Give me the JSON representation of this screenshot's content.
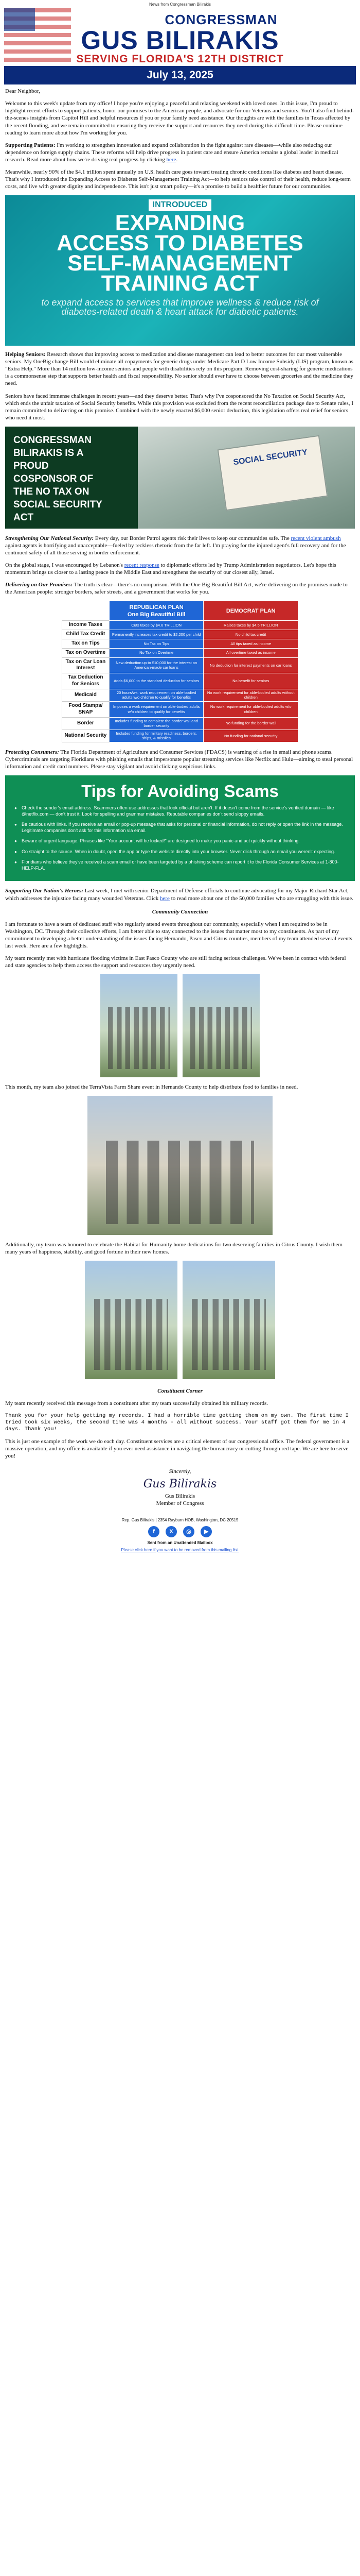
{
  "top_note": "News from Congressman Bilirakis",
  "header": {
    "congressman": "CONGRESSMAN",
    "name": "GUS BILIRAKIS",
    "district": "SERVING FLORIDA'S 12TH DISTRICT",
    "date": "July 13, 2025"
  },
  "greeting": "Dear Neighbor,",
  "intro": "Welcome to this week's update from my office! I hope you're enjoying a peaceful and relaxing weekend with loved ones. In this issue, I'm proud to highlight recent efforts to support patients, honor our promises to the American people, and advocate for our Veterans and seniors. You'll also find behind-the-scenes insights from Capitol Hill and helpful resources if you or your family need assistance. Our thoughts are with the families in Texas affected by the recent flooding, and we remain committed to ensuring they receive the support and resources they need during this difficult time. Please continue reading to learn more about how I'm working for you.",
  "patients": {
    "heading": "Supporting Patients:",
    "text": " I'm working to strengthen innovation and expand collaboration in the fight against rare diseases—while also reducing our dependence on foreign supply chains. These reforms will help drive progress in patient care and ensure America remains a global leader in medical research. Read more about how we're driving real progress by clicking ",
    "link": "here",
    "tail": "."
  },
  "diabetes_intro": "Meanwhile, nearly 90% of the $4.1 trillion spent annually on U.S. health care goes toward treating chronic conditions like diabetes and heart disease. That's why I introduced the Expanding Access to Diabetes Self-Management Training Act—to help seniors take control of their health, reduce long-term costs, and live with greater dignity and independence. This isn't just smart policy—it's a promise to build a healthier future for our communities.",
  "diabetes_banner": {
    "tag": "INTRODUCED",
    "title_lines": [
      "EXPANDING",
      "ACCESS TO DIABETES",
      "SELF-MANAGEMENT",
      "TRAINING ACT"
    ],
    "subtitle": "to expand access to services that improve wellness & reduce risk of diabetes-related death & heart attack for diabetic patients."
  },
  "seniors": {
    "heading": "Helping Seniors:",
    "text1": " Research shows that improving access to medication and disease management can lead to better outcomes for our most vulnerable seniors. My OneBig change Bill would eliminate all copayments for generic drugs under Medicare Part D Low Income Subsidy (LIS) program, known as \"Extra Help.\" More than 14 million low-income seniors and people with disabilities rely on this program. Removing cost-sharing for generic medications is a commonsense step that supports better health and fiscal responsibility. No senior should ever have to choose between groceries and the medicine they need.",
    "text2": "Seniors have faced immense challenges in recent years—and they deserve better. That's why I've cosponsored the No Taxation on Social Security Act, which ends the unfair taxation of Social Security benefits. While this provision was excluded from the recent reconciliation package due to Senate rules, I remain committed to delivering on this promise. Combined with the newly enacted $6,000 senior deduction, this legislation offers real relief for seniors who need it most."
  },
  "ss_banner": {
    "lines": [
      "CONGRESSMAN",
      "BILIRAKIS IS A",
      "PROUD",
      "COSPONSOR OF",
      "THE NO TAX ON",
      "SOCIAL SECURITY",
      "ACT"
    ],
    "card": "SOCIAL SECURITY"
  },
  "social_security": {
    "heading": "Strengthening Our National Security:",
    "text": " Every day, our Border Patrol agents risk their lives to keep our communities safe. The ",
    "link": "recent violent ambush",
    "tail": " against agents is horrifying and unacceptable—fueled by reckless rhetoric from the far left. I'm praying for the injured agent's full recovery and for the continued safety of all those serving in border enforcement."
  },
  "diplomacy": {
    "text": "On the global stage, I was encouraged by Lebanon's ",
    "link": "recent response",
    "tail": " to diplomatic efforts led by Trump Administration negotiators. Let's hope this momentum brings us closer to a lasting peace in the Middle East and strengthens the security of our closest ally, Israel."
  },
  "promises": {
    "heading": "Delivering on Our Promises:",
    "text": " The truth is clear—there's no comparison. With the One Big Beautiful Bill Act, we're delivering on the promises made to the American people: stronger borders, safer streets, and a government that works for you."
  },
  "comparison": {
    "rep_header": "REPUBLICAN PLAN\nOne Big Beautiful Bill",
    "dem_header": "DEMOCRAT PLAN",
    "rows": [
      {
        "label": "Income Taxes",
        "rep": "Cuts taxes by $4.6 TRILLION",
        "dem": "Raises taxes by $4.5 TRILLION"
      },
      {
        "label": "Child Tax Credit",
        "rep": "Permanently increases tax credit to $2,200 per child",
        "dem": "No child tax credit"
      },
      {
        "label": "Tax on Tips",
        "rep": "No Tax on Tips",
        "dem": "All tips taxed as income"
      },
      {
        "label": "Tax on Overtime",
        "rep": "No Tax on Overtime",
        "dem": "All overtime taxed as income"
      },
      {
        "label": "Tax on Car Loan Interest",
        "rep": "New deduction up to $10,000 for the interest on American-made car loans",
        "dem": "No deduction for interest payments on car loans"
      },
      {
        "label": "Tax Deduction for Seniors",
        "rep": "Adds $6,000 to the standard deduction for seniors",
        "dem": "No benefit for seniors"
      },
      {
        "label": "Medicaid",
        "rep": "20 hours/wk. work requirement on able-bodied adults w/o children to qualify for benefits",
        "dem": "No work requirement for able-bodied adults without children"
      },
      {
        "label": "Food Stamps/ SNAP",
        "rep": "Imposes a work requirement on able-bodied adults w/o children to qualify for benefits",
        "dem": "No work requirement for able-bodied adults w/o children"
      },
      {
        "label": "Border",
        "rep": "Includes funding to complete the border wall and border security",
        "dem": "No funding for the border wall"
      },
      {
        "label": "National Security",
        "rep": "Includes funding for military readiness, borders, ships, & missiles",
        "dem": "No funding for national security"
      }
    ]
  },
  "consumers": {
    "heading": "Protecting Consumers:",
    "text": " The Florida Department of Agriculture and Consumer Services (FDACS) is warning of a rise in email and phone scams. Cybercriminals are targeting Floridians with phishing emails that impersonate popular streaming services like Netflix and Hulu—aiming to steal personal information and credit card numbers. Please stay vigilant and avoid clicking suspicious links."
  },
  "scam_tips": {
    "title": "Tips for Avoiding Scams",
    "items": [
      "Check the sender's email address. Scammers often use addresses that look official but aren't. If it doesn't come from the service's verified domain — like @netflix.com — don't trust it. Look for spelling and grammar mistakes. Reputable companies don't send sloppy emails.",
      "Be cautious with links. If you receive an email or pop-up message that asks for personal or financial information, do not reply or open the link in the message. Legitimate companies don't ask for this information via email.",
      "Beware of urgent language. Phrases like \"Your account will be locked!\" are designed to make you panic and act quickly without thinking.",
      "Go straight to the source. When in doubt, open the app or type the website directly into your browser. Never click through an email you weren't expecting.",
      "Floridians who believe they've received a scam email or have been targeted by a phishing scheme can report it to the Florida Consumer Services at 1-800-HELP-FLA."
    ]
  },
  "heroes": {
    "heading": "Supporting Our Nation's Heroes:",
    "text": " Last week, I met with senior Department of Defense officials to continue advocating for my Major Richard Star Act, which addresses the injustice facing many wounded Veterans. Click ",
    "link": "here",
    "tail": " to read more about one of the 50,000 families who are struggling with this issue."
  },
  "community": {
    "title": "Community Connection",
    "p1": "I am fortunate to have a team of dedicated staff who regularly attend events throughout our community, especially when I am required to be in Washington, DC. Through their collective efforts, I am better able to stay connected to the issues that matter most to my constituents. As part of my commitment to developing a better understanding of the issues facing Hernando, Pasco and Citrus counties, members of my team attended several events last week. Here are a few highlights.",
    "p2": "My team recently met with hurricane flooding victims in East Pasco County who are still facing serious challenges. We've been in contact with federal and state agencies to help them access the support and resources they urgently need.",
    "p3": "This month, my team also joined the TerraVista Farm Share event in Hernando County to help distribute food to families in need.",
    "p4": "Additionally, my team was honored to celebrate the Habitat for Humanity home dedications for two deserving families in Citrus County. I wish them many years of happiness, stability, and good fortune in their new homes."
  },
  "constituent": {
    "title": "Constituent Corner",
    "p1": "My team recently received this message from a constituent after my team successfully obtained his military records.",
    "quote": "Thank you for your help getting my records. I had a horrible time getting them on my own. The first time I tried took six weeks, the second time was 4 months - all without success. Your staff got them for me in 4 days. Thank you!",
    "p2": "This is just one example of the work we do each day. Constituent services are a critical element of our congressional office. The federal government is a massive operation, and my office is available if you ever need assistance in navigating the bureaucracy or cutting through red tape. We are here to serve you!"
  },
  "signature": {
    "sincerely": "Sincerely,",
    "sig": "Gus Bilirakis",
    "name": "Gus Bilirakis",
    "title": "Member of Congress"
  },
  "footer": {
    "address": "Rep. Gus Bilirakis | 2354 Rayburn HOB, Washington, DC 20515",
    "social": [
      "f",
      "X",
      "◎",
      "▶"
    ],
    "sent_from": "Sent from an Unattended Mailbox",
    "unsubscribe": "Please click here if you want to be removed from this mailing list."
  }
}
